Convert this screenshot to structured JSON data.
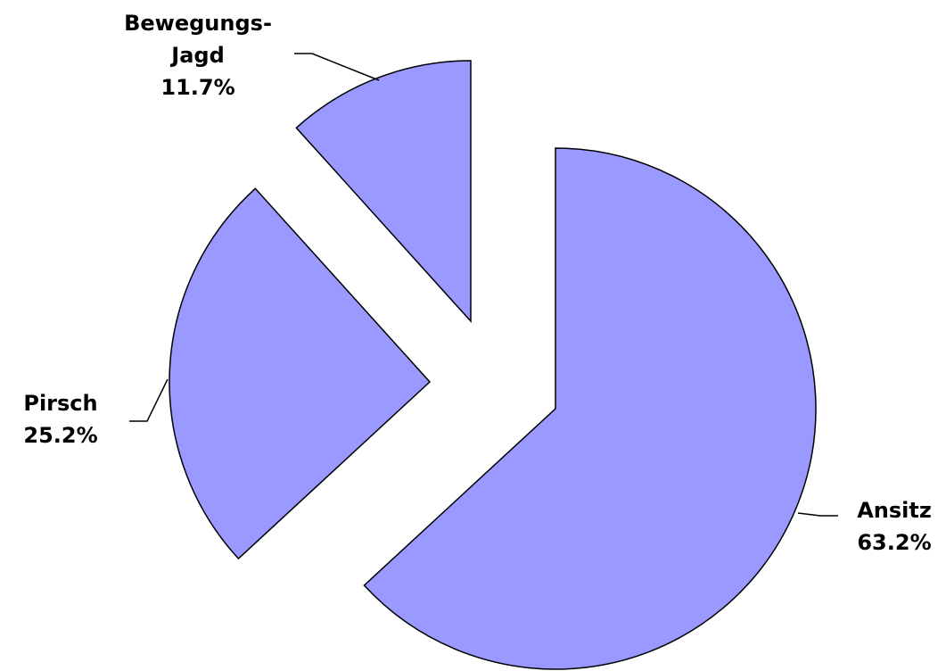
{
  "chart_data": {
    "type": "pie",
    "categories": [
      "Ansitz",
      "Pirsch",
      "Bewegungs-\nJagd"
    ],
    "values": [
      63.2,
      25.2,
      11.7
    ],
    "value_labels": [
      "63.2%",
      "25.2%",
      "11.7%"
    ],
    "color": "#9999ff"
  }
}
